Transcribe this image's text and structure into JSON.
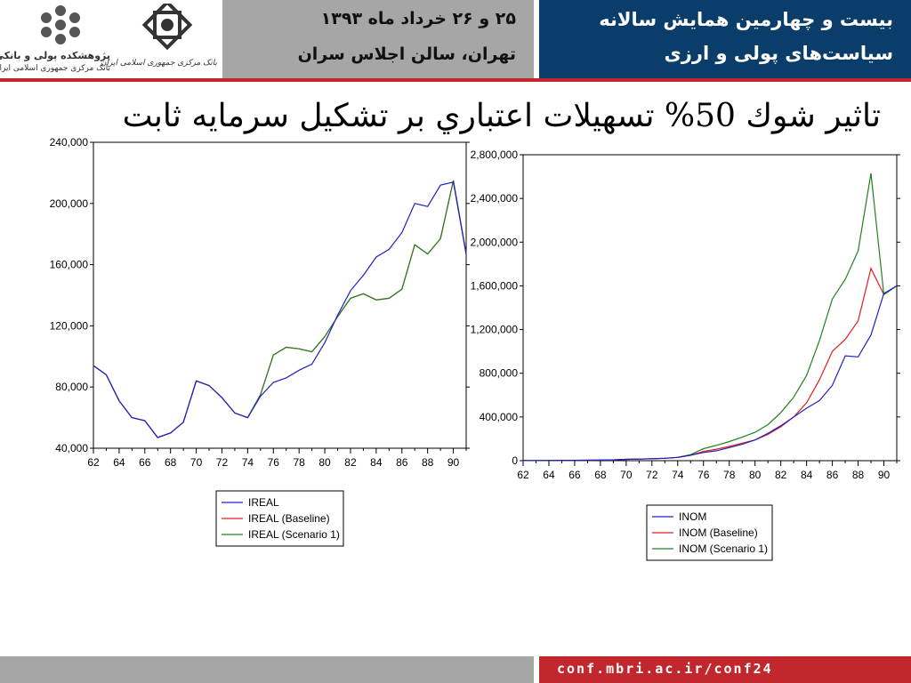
{
  "header": {
    "institute_name": "پژوهشکده پولی و بانکی",
    "institute_sub": "بانک مرکزی جمهوری اسلامی ایران",
    "bank_name": "بانک مرکزی جمهوری اسلامی ایران",
    "date_line1": "۲۵ و ۲۶ خرداد ماه ۱۳۹۳",
    "date_line2": "تهران، سالن اجلاس سران",
    "conf_line1": "بیست و چهارمین همایش سالانه",
    "conf_line2": "سیاست‌های پولی و ارزی",
    "colors": {
      "navy": "#0b3d6b",
      "gray": "#a6a6a6",
      "red": "#c1272d"
    }
  },
  "title": "تاثير شوك 50% تسهيلات اعتباري بر تشكيل سرمايه ثابت",
  "footer": {
    "url": "conf.mbri.ac.ir/conf24"
  },
  "chart_data": [
    {
      "type": "line",
      "x": [
        62,
        63,
        64,
        65,
        66,
        67,
        68,
        69,
        70,
        71,
        72,
        73,
        74,
        75,
        76,
        77,
        78,
        79,
        80,
        81,
        82,
        83,
        84,
        85,
        86,
        87,
        88,
        89,
        90,
        91
      ],
      "series": [
        {
          "name": "IREAL",
          "color": "#2020c0",
          "values": [
            94000,
            88000,
            71000,
            60000,
            58000,
            47000,
            50000,
            57000,
            84000,
            81000,
            73000,
            63000,
            60000,
            74000,
            83000,
            86000,
            91000,
            95000,
            109000,
            127000,
            143000,
            153000,
            165000,
            170000,
            181000,
            200000,
            198000,
            212000,
            214000,
            167000
          ]
        },
        {
          "name": "IREAL (Baseline)",
          "color": "#e02020",
          "values": [
            94000,
            88000,
            71000,
            60000,
            58000,
            47000,
            50000,
            57000,
            84000,
            81000,
            73000,
            63000,
            60000,
            75000,
            101000,
            106000,
            105000,
            103000,
            113000,
            126000,
            138000,
            141000,
            137000,
            138000,
            144000,
            173000,
            167000,
            177000,
            215000,
            167000
          ]
        },
        {
          "name": "IREAL (Scenario 1)",
          "color": "#208020",
          "values": [
            94000,
            88000,
            71000,
            60000,
            58000,
            47000,
            50000,
            57000,
            84000,
            81000,
            73000,
            63000,
            60000,
            75000,
            101000,
            106000,
            105000,
            103000,
            113000,
            126000,
            138000,
            141000,
            137000,
            138000,
            144000,
            173000,
            167000,
            177000,
            215000,
            167000
          ]
        }
      ],
      "y_ticks": [
        "240,000",
        "200,000",
        "160,000",
        "120,000",
        "80,000",
        "40,000"
      ],
      "x_ticks": [
        "62",
        "64",
        "66",
        "68",
        "70",
        "72",
        "74",
        "76",
        "78",
        "80",
        "82",
        "84",
        "86",
        "88",
        "90"
      ],
      "ylim": [
        40000,
        240000
      ],
      "xlim": [
        62,
        91
      ],
      "legend": "bottom-center"
    },
    {
      "type": "line",
      "x": [
        62,
        63,
        64,
        65,
        66,
        67,
        68,
        69,
        70,
        71,
        72,
        73,
        74,
        75,
        76,
        77,
        78,
        79,
        80,
        81,
        82,
        83,
        84,
        85,
        86,
        87,
        88,
        89,
        90,
        91
      ],
      "series": [
        {
          "name": "INOM",
          "color": "#2020c0",
          "values": [
            1500,
            2000,
            2500,
            3000,
            3500,
            4000,
            5000,
            7000,
            12000,
            15000,
            18000,
            22000,
            30000,
            50000,
            75000,
            90000,
            120000,
            150000,
            190000,
            250000,
            320000,
            400000,
            480000,
            550000,
            690000,
            960000,
            950000,
            1150000,
            1530000,
            1600000
          ]
        },
        {
          "name": "INOM (Baseline)",
          "color": "#e02020",
          "values": [
            1500,
            2000,
            2500,
            3000,
            3500,
            4000,
            5000,
            7000,
            12000,
            15000,
            18000,
            22000,
            30000,
            50000,
            85000,
            105000,
            130000,
            160000,
            190000,
            240000,
            310000,
            400000,
            530000,
            740000,
            1000000,
            1110000,
            1280000,
            1760000,
            1520000,
            1600000
          ]
        },
        {
          "name": "INOM (Scenario 1)",
          "color": "#208020",
          "values": [
            1500,
            2000,
            2500,
            3000,
            3500,
            4000,
            5000,
            7000,
            12000,
            15000,
            18000,
            22000,
            30000,
            55000,
            110000,
            140000,
            175000,
            215000,
            260000,
            330000,
            440000,
            580000,
            780000,
            1100000,
            1480000,
            1660000,
            1920000,
            2630000,
            1520000,
            1600000
          ]
        }
      ],
      "y_ticks": [
        "2,800,000",
        "2,400,000",
        "2,000,000",
        "1,600,000",
        "1,200,000",
        "800,000",
        "400,000",
        "0"
      ],
      "x_ticks": [
        "62",
        "64",
        "66",
        "68",
        "70",
        "72",
        "74",
        "76",
        "78",
        "80",
        "82",
        "84",
        "86",
        "88",
        "90"
      ],
      "ylim": [
        0,
        2800000
      ],
      "xlim": [
        62,
        91
      ],
      "legend": "bottom-center"
    }
  ]
}
